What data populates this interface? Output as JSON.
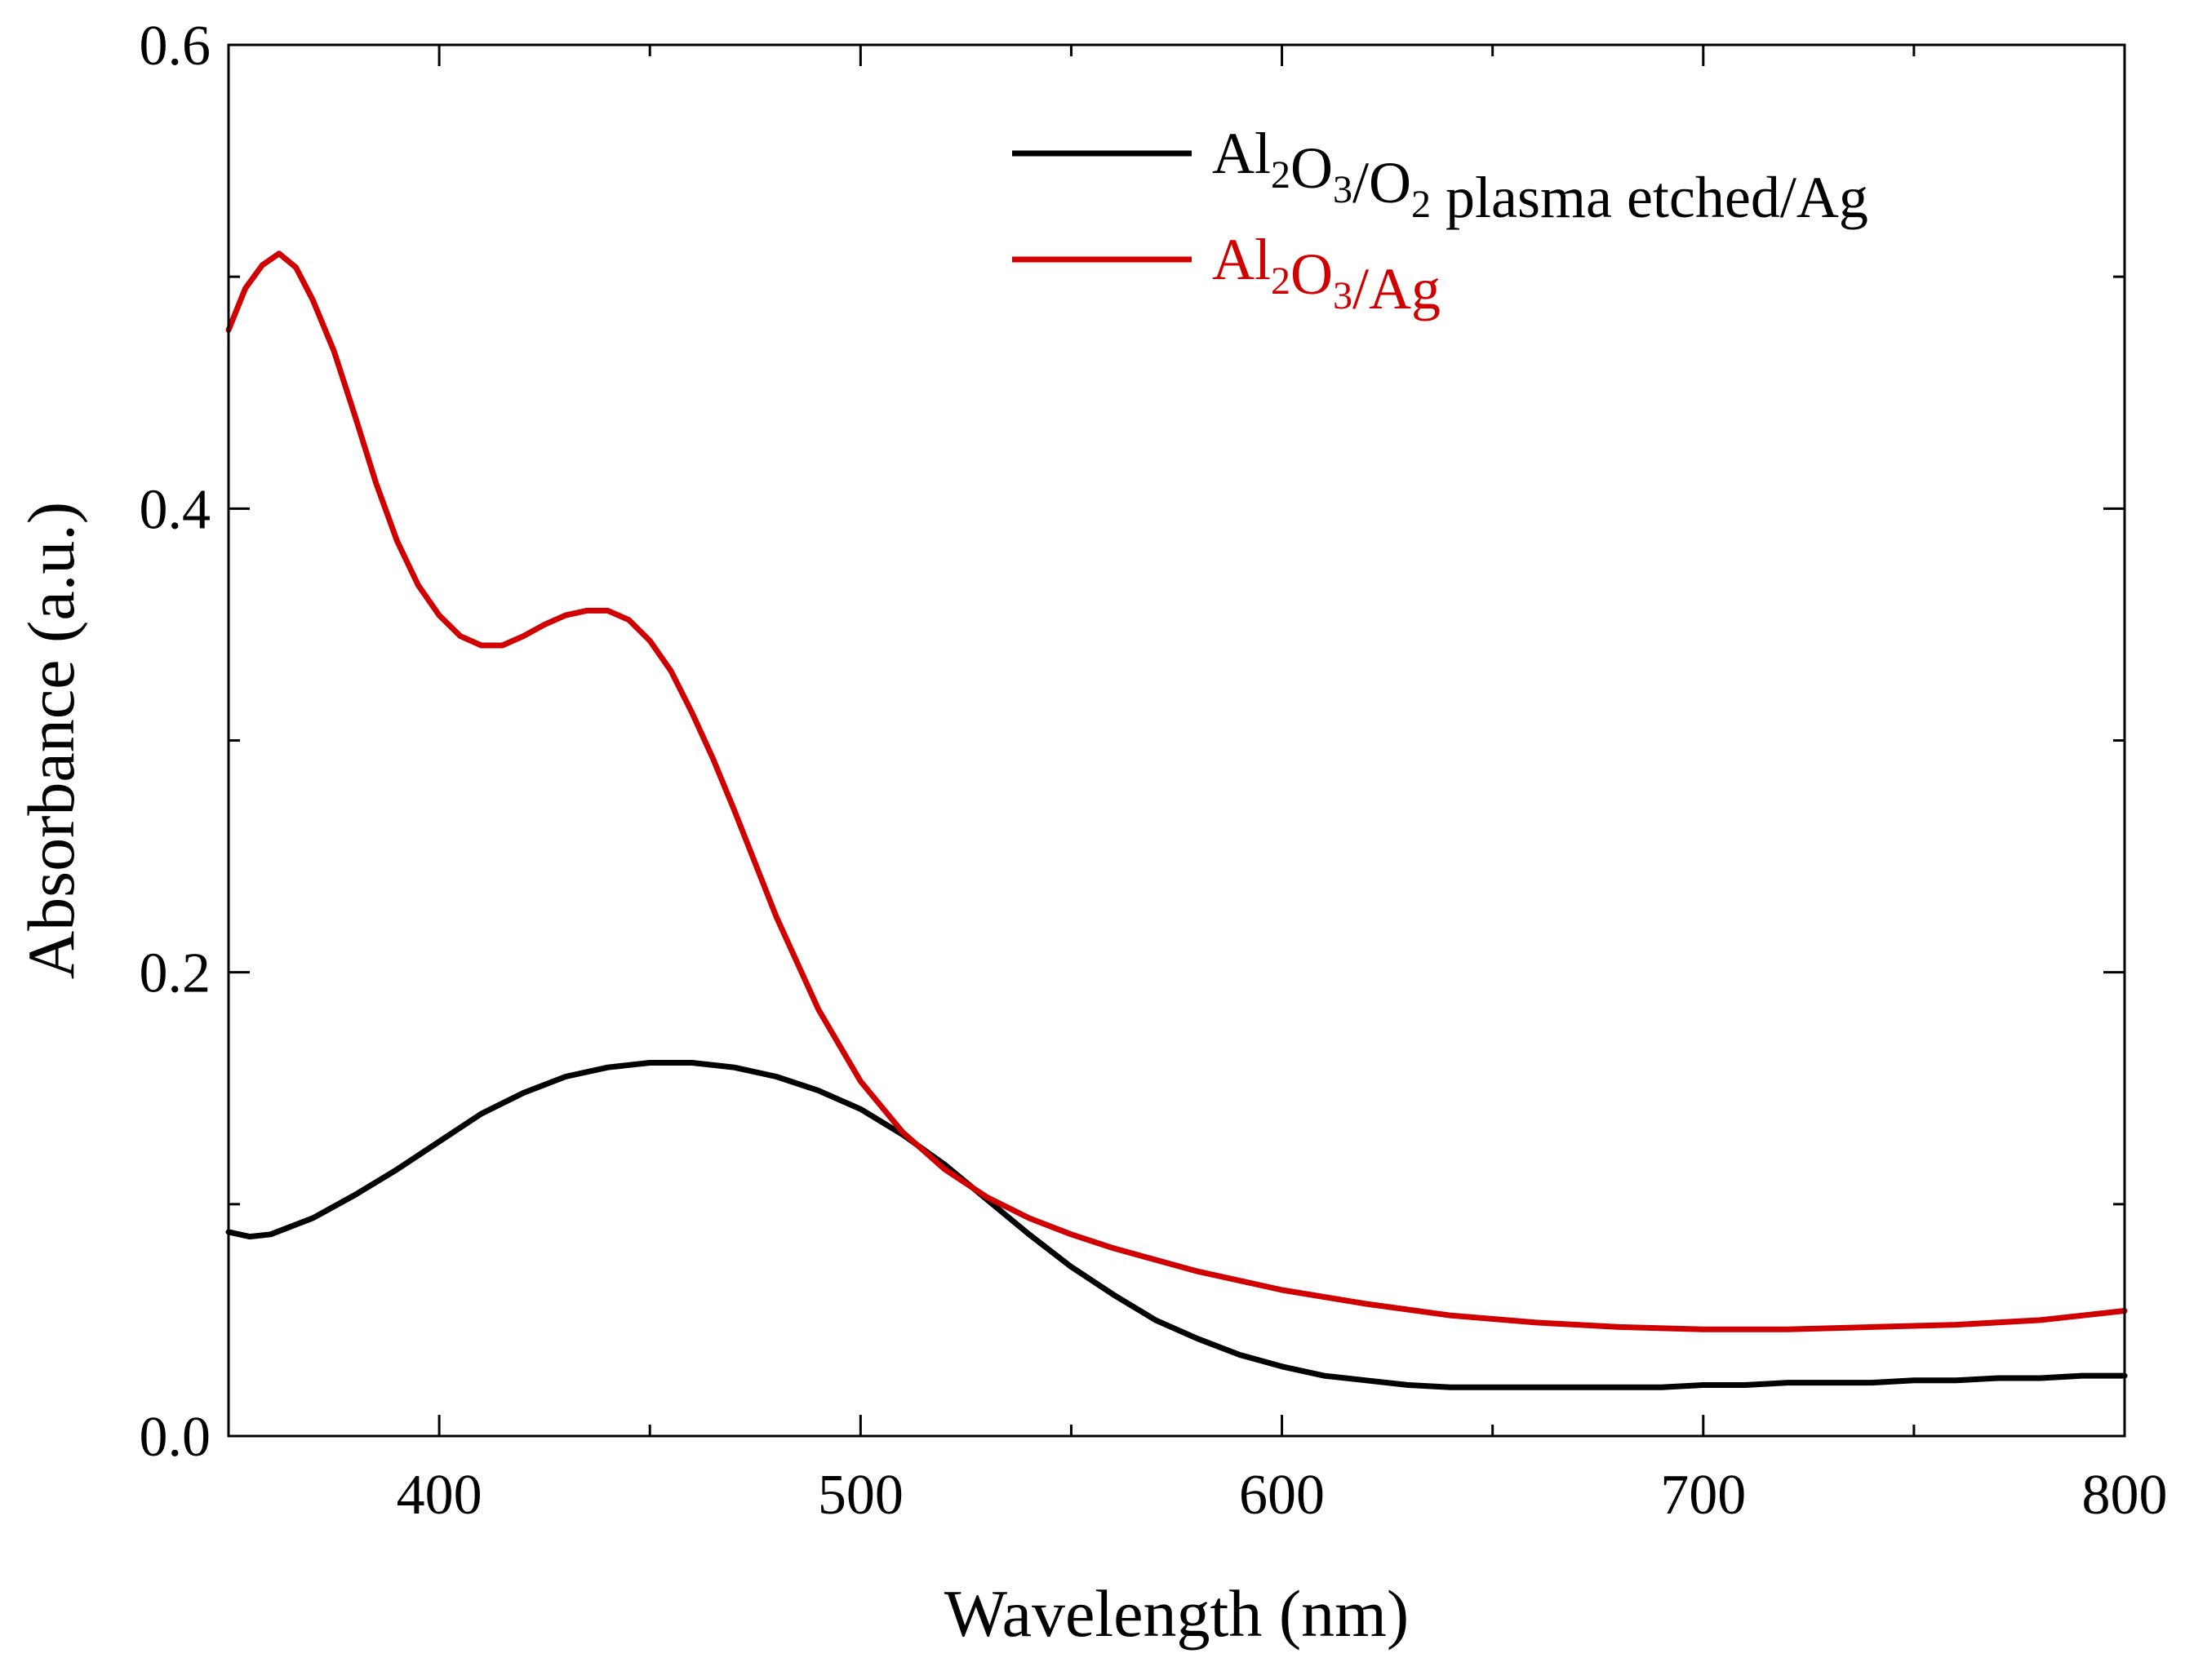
{
  "chart_data": {
    "type": "line",
    "title": "",
    "xlabel": "Wavelength (nm)",
    "ylabel": "Absorbance (a.u.)",
    "xlim": [
      350,
      800
    ],
    "ylim": [
      0,
      0.6
    ],
    "grid": false,
    "legend_position": "top-right",
    "x_ticks": [
      {
        "value": 400,
        "label": "400"
      },
      {
        "value": 500,
        "label": "500"
      },
      {
        "value": 600,
        "label": "600"
      },
      {
        "value": 700,
        "label": "700"
      },
      {
        "value": 800,
        "label": "800"
      }
    ],
    "x_minor_ticks": [
      450,
      550,
      650,
      750
    ],
    "y_ticks": [
      {
        "value": 0.0,
        "label": "0.0"
      },
      {
        "value": 0.2,
        "label": "0.2"
      },
      {
        "value": 0.4,
        "label": "0.4"
      },
      {
        "value": 0.6,
        "label": "0.6"
      }
    ],
    "y_minor_ticks": [
      0.1,
      0.3,
      0.5
    ],
    "series": [
      {
        "name": "Al2O3/O2 plasma etched/Ag",
        "legend_parts": [
          {
            "text": "Al",
            "sub": false
          },
          {
            "text": "2",
            "sub": true
          },
          {
            "text": "O",
            "sub": false
          },
          {
            "text": "3",
            "sub": true
          },
          {
            "text": "/O",
            "sub": false
          },
          {
            "text": "2",
            "sub": true
          },
          {
            "text": " plasma etched/Ag",
            "sub": false
          }
        ],
        "color": "#000000",
        "x": [
          350,
          355,
          360,
          370,
          380,
          390,
          400,
          410,
          420,
          430,
          440,
          450,
          460,
          470,
          480,
          490,
          500,
          510,
          520,
          530,
          540,
          550,
          560,
          570,
          580,
          590,
          600,
          610,
          620,
          630,
          640,
          650,
          660,
          670,
          680,
          690,
          700,
          710,
          720,
          730,
          740,
          750,
          760,
          770,
          780,
          790,
          800
        ],
        "y": [
          0.088,
          0.086,
          0.087,
          0.094,
          0.104,
          0.115,
          0.127,
          0.139,
          0.148,
          0.155,
          0.159,
          0.161,
          0.161,
          0.159,
          0.155,
          0.149,
          0.141,
          0.13,
          0.117,
          0.102,
          0.087,
          0.073,
          0.061,
          0.05,
          0.042,
          0.035,
          0.03,
          0.026,
          0.024,
          0.022,
          0.021,
          0.021,
          0.021,
          0.021,
          0.021,
          0.021,
          0.022,
          0.022,
          0.023,
          0.023,
          0.023,
          0.024,
          0.024,
          0.025,
          0.025,
          0.026,
          0.026
        ]
      },
      {
        "name": "Al2O3/Ag",
        "legend_parts": [
          {
            "text": "Al",
            "sub": false
          },
          {
            "text": "2",
            "sub": true
          },
          {
            "text": "O",
            "sub": false
          },
          {
            "text": "3",
            "sub": true
          },
          {
            "text": "/Ag",
            "sub": false
          }
        ],
        "color": "#d00000",
        "x": [
          350,
          354,
          358,
          362,
          366,
          370,
          375,
          380,
          385,
          390,
          395,
          400,
          405,
          410,
          415,
          420,
          425,
          430,
          435,
          440,
          445,
          450,
          455,
          460,
          465,
          470,
          475,
          480,
          490,
          500,
          510,
          520,
          530,
          540,
          550,
          560,
          580,
          600,
          620,
          640,
          660,
          680,
          700,
          720,
          740,
          760,
          780,
          800
        ],
        "y": [
          0.477,
          0.495,
          0.505,
          0.51,
          0.504,
          0.49,
          0.468,
          0.44,
          0.411,
          0.386,
          0.367,
          0.354,
          0.345,
          0.341,
          0.341,
          0.345,
          0.35,
          0.354,
          0.356,
          0.356,
          0.352,
          0.343,
          0.33,
          0.312,
          0.292,
          0.27,
          0.247,
          0.224,
          0.184,
          0.153,
          0.131,
          0.115,
          0.103,
          0.094,
          0.087,
          0.081,
          0.071,
          0.063,
          0.057,
          0.052,
          0.049,
          0.047,
          0.046,
          0.046,
          0.047,
          0.048,
          0.05,
          0.054
        ]
      }
    ]
  }
}
